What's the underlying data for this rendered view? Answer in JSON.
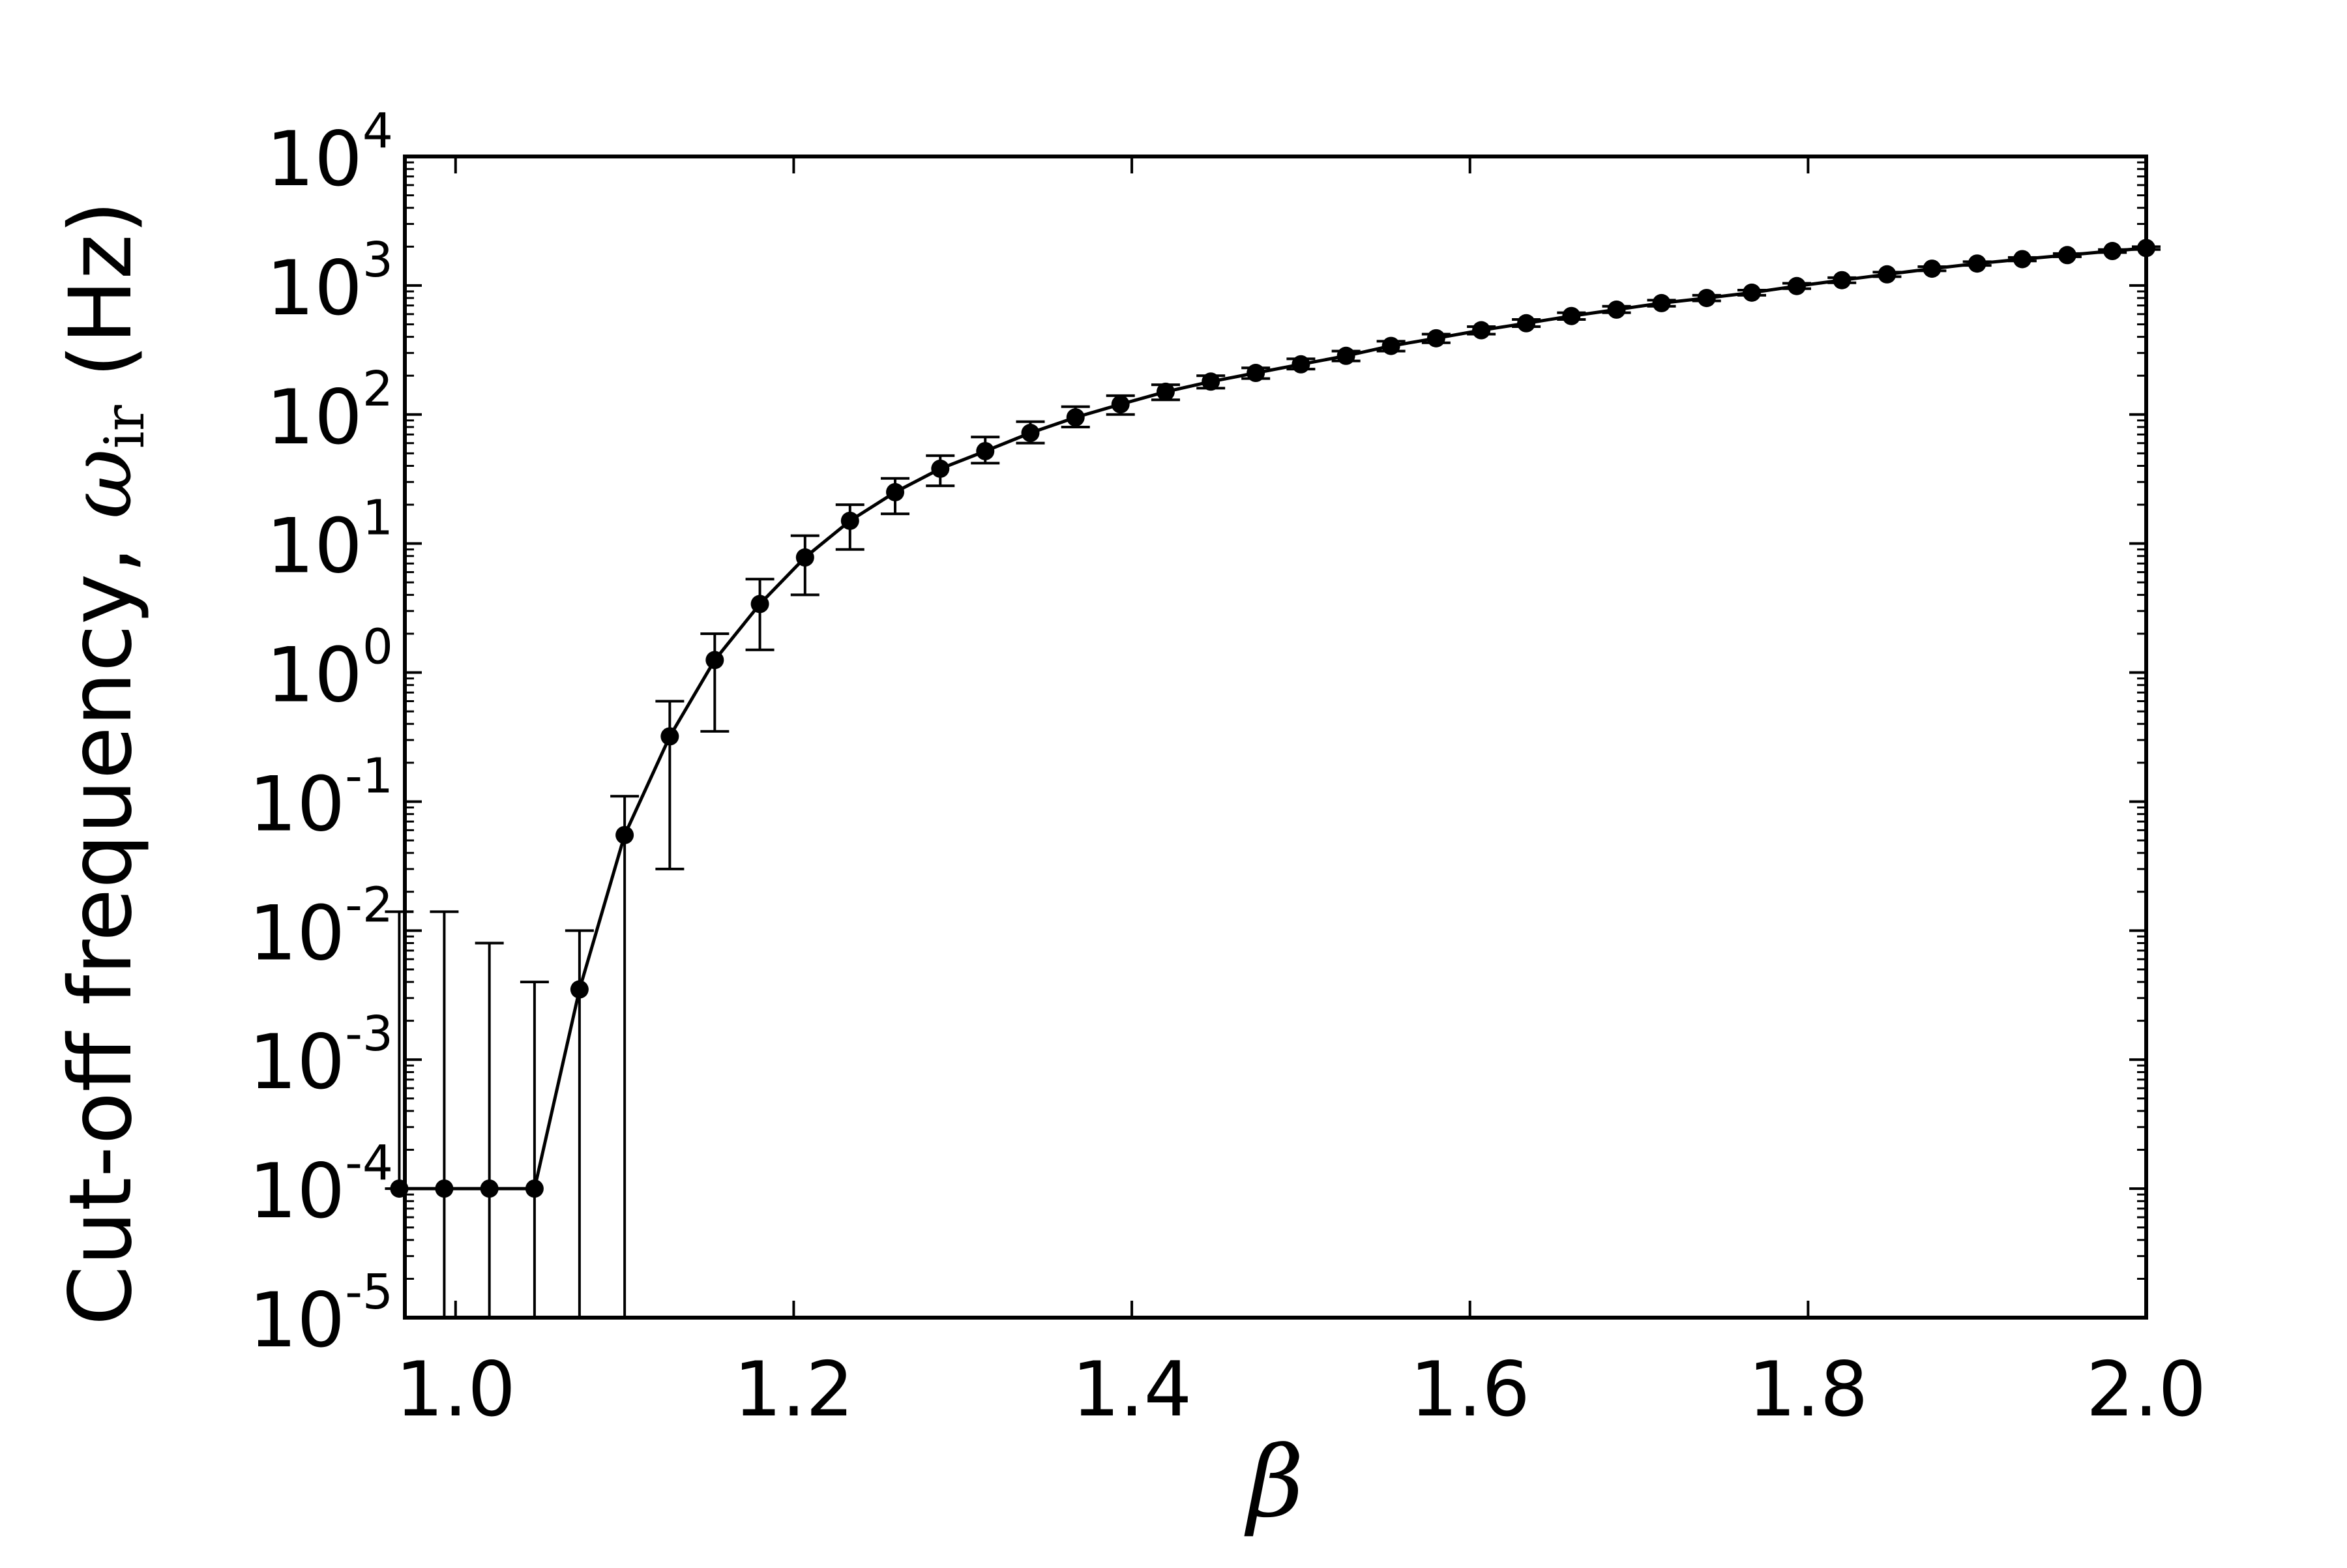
{
  "chart_data": {
    "type": "line",
    "title": "",
    "xlabel": "β",
    "ylabel": {
      "prefix": "Cut-off frequency, ",
      "symbol": "ω",
      "subscript": "ir",
      "suffix": " (Hz)"
    },
    "y_scale": "log",
    "xlim": [
      0.97,
      2.0
    ],
    "ylim": [
      1e-05,
      10000.0
    ],
    "grid": false,
    "legend": false,
    "x_ticks": [
      {
        "value": 1.0,
        "label": "1.0"
      },
      {
        "value": 1.2,
        "label": "1.2"
      },
      {
        "value": 1.4,
        "label": "1.4"
      },
      {
        "value": 1.6,
        "label": "1.6"
      },
      {
        "value": 1.8,
        "label": "1.8"
      },
      {
        "value": 2.0,
        "label": "2.0"
      }
    ],
    "y_ticks": [
      {
        "exp": -5,
        "base": "10",
        "sup": "-5"
      },
      {
        "exp": -4,
        "base": "10",
        "sup": "-4"
      },
      {
        "exp": -3,
        "base": "10",
        "sup": "-3"
      },
      {
        "exp": -2,
        "base": "10",
        "sup": "-2"
      },
      {
        "exp": -1,
        "base": "10",
        "sup": "-1"
      },
      {
        "exp": 0,
        "base": "10",
        "sup": "0"
      },
      {
        "exp": 1,
        "base": "10",
        "sup": "1"
      },
      {
        "exp": 2,
        "base": "10",
        "sup": "2"
      },
      {
        "exp": 3,
        "base": "10",
        "sup": "3"
      },
      {
        "exp": 4,
        "base": "10",
        "sup": "4"
      }
    ],
    "series": [
      {
        "color": "#000000",
        "marker": "circle",
        "error_bars": true,
        "x": [
          0.9667,
          0.9933,
          1.02,
          1.0467,
          1.0733,
          1.1,
          1.1267,
          1.1533,
          1.18,
          1.2067,
          1.2333,
          1.26,
          1.2867,
          1.3133,
          1.34,
          1.3667,
          1.3933,
          1.42,
          1.4467,
          1.4733,
          1.5,
          1.5267,
          1.5533,
          1.58,
          1.6067,
          1.6333,
          1.66,
          1.6867,
          1.7133,
          1.74,
          1.7667,
          1.7933,
          1.82,
          1.8467,
          1.8733,
          1.9,
          1.9267,
          1.9533,
          1.98,
          2.0
        ],
        "y": [
          0.0001,
          0.0001,
          0.0001,
          0.0001,
          0.0035,
          0.055,
          0.32,
          1.25,
          3.4,
          7.8,
          15,
          25,
          38,
          52,
          72,
          95,
          120,
          150,
          180,
          210,
          245,
          285,
          340,
          390,
          450,
          510,
          580,
          650,
          730,
          800,
          880,
          990,
          1100,
          1220,
          1350,
          1480,
          1600,
          1720,
          1850,
          1950
        ],
        "y_err_upper": [
          0.014,
          0.014,
          0.008,
          0.004,
          0.01,
          0.11,
          0.6,
          2.0,
          5.3,
          11.5,
          20,
          32,
          48,
          67,
          88,
          115,
          140,
          170,
          200,
          230,
          270,
          310,
          370,
          420,
          480,
          545,
          615,
          690,
          770,
          840,
          920,
          1040,
          1150,
          1270,
          1400,
          1530,
          1650,
          1770,
          1900,
          2000
        ],
        "y_err_lower": [
          0.0001,
          1e-05,
          1e-05,
          1e-05,
          1e-05,
          1e-05,
          0.03,
          0.35,
          1.5,
          4.0,
          9.0,
          17,
          28,
          42,
          60,
          80,
          100,
          130,
          160,
          190,
          225,
          260,
          310,
          360,
          420,
          480,
          545,
          615,
          690,
          760,
          840,
          945,
          1050,
          1170,
          1300,
          1430,
          1550,
          1670,
          1800,
          1900
        ]
      }
    ]
  }
}
